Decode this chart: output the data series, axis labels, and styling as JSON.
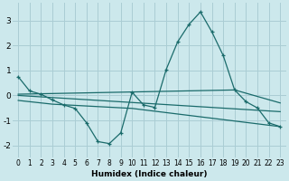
{
  "background_color": "#cce8ec",
  "grid_color": "#aacdd4",
  "line_color": "#1a6b6b",
  "xlabel": "Humidex (Indice chaleur)",
  "xlim": [
    -0.5,
    23.5
  ],
  "ylim": [
    -2.5,
    3.7
  ],
  "yticks": [
    -2,
    -1,
    0,
    1,
    2,
    3
  ],
  "xticks": [
    0,
    1,
    2,
    3,
    4,
    5,
    6,
    7,
    8,
    9,
    10,
    11,
    12,
    13,
    14,
    15,
    16,
    17,
    18,
    19,
    20,
    21,
    22,
    23
  ],
  "series1_x": [
    0,
    1,
    2,
    3,
    4,
    5,
    6,
    7,
    8,
    9,
    10,
    11,
    12,
    13,
    14,
    15,
    16,
    17,
    18,
    19,
    20,
    21,
    22,
    23
  ],
  "series1_y": [
    0.75,
    0.18,
    0.05,
    -0.18,
    -0.38,
    -0.52,
    -1.1,
    -1.85,
    -1.93,
    -1.5,
    0.13,
    -0.38,
    -0.48,
    1.05,
    2.15,
    2.85,
    3.35,
    2.55,
    1.6,
    0.22,
    -0.25,
    -0.5,
    -1.1,
    -1.25
  ],
  "series2_x": [
    0,
    19,
    23
  ],
  "series2_y": [
    0.05,
    0.22,
    -0.3
  ],
  "series3_x": [
    0,
    23
  ],
  "series3_y": [
    0.0,
    -0.65
  ],
  "series4_x": [
    0,
    3,
    10,
    23
  ],
  "series4_y": [
    -0.2,
    -0.35,
    -0.52,
    -1.25
  ]
}
